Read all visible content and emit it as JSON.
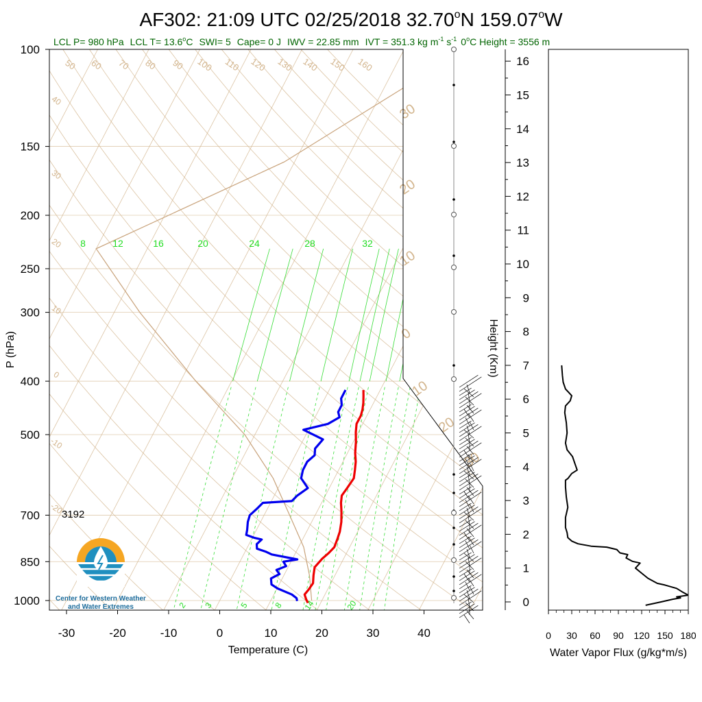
{
  "title": {
    "prefix": "AF302: 21:09 UTC 02/25/2018  32.70",
    "lat_suffix": "N 159.07",
    "lon_suffix": "W",
    "deg": "o"
  },
  "subtitle": {
    "lcl_p": "LCL P= 980 hPa",
    "lcl_t": "LCL T= 13.6",
    "lcl_t_unit": "C",
    "swi": "SWI= 5",
    "cape": "Cape= 0 J",
    "iwv": "IWV = 22.85 mm",
    "ivt": "IVT = 351.3 kg m",
    "ivt_exp1": "-1",
    "ivt_s": " s",
    "ivt_exp2": "-1",
    "zero_c": "0",
    "zero_c_rest": "C Height = 3556 m"
  },
  "annotation_3192": "3192",
  "logo": {
    "line1": "Center for Western Weather",
    "line2": "and Water Extremes"
  },
  "colors": {
    "temperature": "#ee0000",
    "dewpoint": "#0000ee",
    "mixing_ratio": "#33dd33",
    "dry_adiabat": "#d2b48c",
    "subtitle": "#006400",
    "logo_orange": "#f5a623",
    "logo_blue": "#1f8fbf",
    "logo_text": "#1a6a9a"
  },
  "chart_data": [
    {
      "type": "line",
      "name": "skew-t",
      "xlabel": "Temperature (C)",
      "ylabel": "P (hPa)",
      "right_label": "Height (Km)",
      "pressure_ticks": [
        100,
        150,
        200,
        250,
        300,
        400,
        500,
        700,
        850,
        1000
      ],
      "temperature_ticks": [
        -30,
        -20,
        -10,
        0,
        10,
        20,
        30,
        40
      ],
      "height_ticks": [
        0,
        1,
        2,
        3,
        4,
        5,
        6,
        7,
        8,
        9,
        10,
        11,
        12,
        13,
        14,
        15,
        16
      ],
      "dry_adiabat_labels": [
        "50",
        "60",
        "70",
        "80",
        "90",
        "100",
        "110",
        "120",
        "130",
        "140",
        "150",
        "160"
      ],
      "skew_isotherm_labels_left": [
        "40",
        "30",
        "20",
        "10",
        "0",
        "-10",
        "-20"
      ],
      "right_edge_labels": [
        "30",
        "20",
        "10",
        "0",
        "10",
        "20",
        "30"
      ],
      "mixing_ratio_labels_top": [
        "8",
        "12",
        "16",
        "20",
        "24",
        "28",
        "32"
      ],
      "mixing_ratio_labels_bottom": [
        "2",
        "3",
        "5",
        "8",
        "14",
        "20"
      ],
      "series": [
        {
          "name": "Temperature",
          "points": [
            [
              17.5,
              1010
            ],
            [
              16.8,
              995
            ],
            [
              16.0,
              975
            ],
            [
              16.3,
              955
            ],
            [
              16.5,
              930
            ],
            [
              15.8,
              900
            ],
            [
              15.2,
              870
            ],
            [
              15.8,
              840
            ],
            [
              16.5,
              820
            ],
            [
              17.0,
              800
            ],
            [
              16.8,
              775
            ],
            [
              16.5,
              750
            ],
            [
              15.8,
              720
            ],
            [
              14.8,
              690
            ],
            [
              13.8,
              665
            ],
            [
              13.2,
              645
            ],
            [
              13.5,
              625
            ],
            [
              13.8,
              600
            ],
            [
              13.2,
              580
            ],
            [
              12.5,
              560
            ],
            [
              11.5,
              540
            ],
            [
              10.5,
              515
            ],
            [
              9.5,
              495
            ],
            [
              8.8,
              478
            ],
            [
              8.8,
              462
            ],
            [
              8.5,
              450
            ],
            [
              8.0,
              438
            ],
            [
              7.3,
              425
            ],
            [
              6.7,
              415
            ]
          ]
        },
        {
          "name": "Dewpoint",
          "points": [
            [
              15.2,
              1002
            ],
            [
              14.8,
              990
            ],
            [
              13.5,
              975
            ],
            [
              10.0,
              950
            ],
            [
              8.5,
              935
            ],
            [
              7.8,
              912
            ],
            [
              9.0,
              895
            ],
            [
              8.0,
              880
            ],
            [
              9.5,
              866
            ],
            [
              8.5,
              850
            ],
            [
              11.0,
              842
            ],
            [
              5.5,
              825
            ],
            [
              4.0,
              815
            ],
            [
              2.0,
              805
            ],
            [
              1.5,
              790
            ],
            [
              2.0,
              775
            ],
            [
              0.5,
              770
            ],
            [
              -1.5,
              760
            ],
            [
              -1.8,
              745
            ],
            [
              -2.5,
              720
            ],
            [
              -2.8,
              700
            ],
            [
              -2.0,
              680
            ],
            [
              -1.5,
              665
            ],
            [
              4.0,
              660
            ],
            [
              4.5,
              645
            ],
            [
              5.8,
              625
            ],
            [
              3.5,
              600
            ],
            [
              3.0,
              580
            ],
            [
              3.0,
              560
            ],
            [
              3.8,
              545
            ],
            [
              3.2,
              530
            ],
            [
              3.8,
              510
            ],
            [
              -1.0,
              490
            ],
            [
              3.2,
              478
            ],
            [
              4.8,
              465
            ],
            [
              4.0,
              455
            ],
            [
              4.0,
              442
            ],
            [
              3.2,
              430
            ],
            [
              3.2,
              415
            ]
          ]
        }
      ]
    },
    {
      "type": "line",
      "name": "water-vapor-flux",
      "xlabel": "Water Vapor Flux (g/kg*m/s)",
      "x_ticks": [
        0,
        30,
        60,
        90,
        120,
        150,
        180
      ],
      "xlim": [
        0,
        180
      ],
      "ylim": [
        -0.2,
        16.5
      ],
      "series": [
        {
          "name": "flux",
          "points": [
            [
              125,
              -0.1
            ],
            [
              145,
              0.0
            ],
            [
              160,
              0.08
            ],
            [
              170,
              0.12
            ],
            [
              165,
              0.15
            ],
            [
              180,
              0.2
            ],
            [
              172,
              0.3
            ],
            [
              165,
              0.4
            ],
            [
              150,
              0.5
            ],
            [
              140,
              0.55
            ],
            [
              128,
              0.7
            ],
            [
              120,
              0.85
            ],
            [
              112,
              1.0
            ],
            [
              118,
              1.15
            ],
            [
              108,
              1.2
            ],
            [
              100,
              1.3
            ],
            [
              102,
              1.4
            ],
            [
              92,
              1.45
            ],
            [
              88,
              1.55
            ],
            [
              75,
              1.62
            ],
            [
              55,
              1.65
            ],
            [
              38,
              1.72
            ],
            [
              30,
              1.8
            ],
            [
              25,
              1.9
            ],
            [
              24,
              2.05
            ],
            [
              22,
              2.2
            ],
            [
              22,
              2.5
            ],
            [
              25,
              2.8
            ],
            [
              23,
              3.1
            ],
            [
              22,
              3.4
            ],
            [
              22,
              3.6
            ],
            [
              25,
              3.65
            ],
            [
              30,
              3.8
            ],
            [
              37,
              3.9
            ],
            [
              34,
              4.1
            ],
            [
              31,
              4.3
            ],
            [
              24,
              4.5
            ],
            [
              22,
              4.7
            ],
            [
              24,
              5.0
            ],
            [
              23,
              5.3
            ],
            [
              21,
              5.6
            ],
            [
              22,
              5.8
            ],
            [
              28,
              5.95
            ],
            [
              30,
              6.1
            ],
            [
              26,
              6.2
            ],
            [
              22,
              6.3
            ],
            [
              19,
              6.5
            ],
            [
              18,
              6.7
            ],
            [
              17,
              7.0
            ]
          ]
        }
      ]
    }
  ]
}
